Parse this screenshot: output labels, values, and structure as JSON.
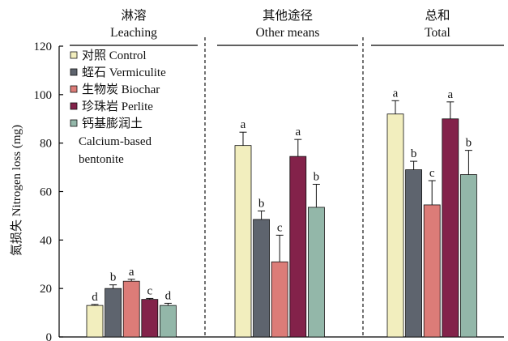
{
  "colors": {
    "control": "#f2eebe",
    "vermiculite": "#5e646e",
    "biochar": "#dc7c78",
    "perlite": "#83224a",
    "bentonite": "#93b7a9"
  },
  "chart_data": {
    "type": "bar",
    "ylabel": "氮损失 Nitrogen loss (mg)",
    "ylim": [
      0,
      120
    ],
    "yticks": [
      "0",
      "20",
      "40",
      "60",
      "80",
      "100",
      "120"
    ],
    "groups": [
      {
        "zh": "淋溶",
        "en": "Leaching"
      },
      {
        "zh": "其他途径",
        "en": "Other means"
      },
      {
        "zh": "总和",
        "en": "Total"
      }
    ],
    "series": [
      {
        "name": "对照 Control",
        "color_key": "control",
        "values": [
          13,
          79,
          92
        ],
        "errors": [
          0.4,
          5.5,
          5.5
        ],
        "labels": [
          "d",
          "a",
          "a"
        ]
      },
      {
        "name": "蛭石 Vermiculite",
        "color_key": "vermiculite",
        "values": [
          20,
          48.5,
          69
        ],
        "errors": [
          1.5,
          3.5,
          3.5
        ],
        "labels": [
          "b",
          "b",
          "b"
        ]
      },
      {
        "name": "生物炭 Biochar",
        "color_key": "biochar",
        "values": [
          23,
          31,
          54.5
        ],
        "errors": [
          0.8,
          11,
          10
        ],
        "labels": [
          "a",
          "c",
          "c"
        ]
      },
      {
        "name": "珍珠岩 Perlite",
        "color_key": "perlite",
        "values": [
          15.5,
          74.5,
          90
        ],
        "errors": [
          0.4,
          7,
          7
        ],
        "labels": [
          "c",
          "a",
          "a"
        ]
      },
      {
        "name": "钙基膨润土 Calcium-based bentonite",
        "legend_lines": [
          "钙基膨润土",
          "Calcium-based",
          "bentonite"
        ],
        "color_key": "bentonite",
        "values": [
          13,
          53.5,
          67
        ],
        "errors": [
          0.9,
          9.5,
          10
        ],
        "labels": [
          "d",
          "b",
          "b"
        ]
      }
    ],
    "legend_position": "top-left",
    "grid": false
  }
}
